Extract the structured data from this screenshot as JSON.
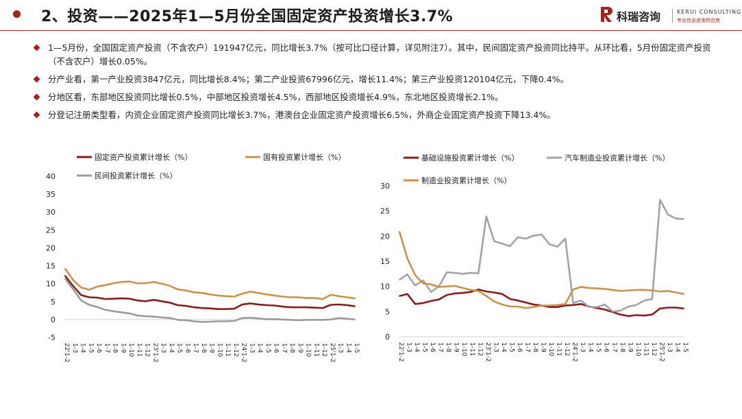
{
  "header": {
    "title": "2、投资——2025年1—5月份全国固定资产投资增长3.7%",
    "logo_cn": "科瑞咨询",
    "logo_en": "KERUI CONSULTING",
    "logo_tag": "专业信息咨询供应商",
    "accent_color": "#a8201a"
  },
  "bullets": [
    "1—5月份，全国固定资产投资（不含农户）191947亿元，同比增长3.7%（按可比口径计算，详见附注7）。其中，民间固定资产投资同比持平。从环比看，5月份固定资产投资（不含农户）增长0.05%。",
    "分产业看，第一产业投资3847亿元，同比增长8.4%；第二产业投资67996亿元，增长11.4%；第三产业投资120104亿元，下降0.4%。",
    "分地区看，东部地区投资同比增长0.5%，中部地区投资增长4.5%，西部地区投资增长4.9%，东北地区投资增长2.1%。",
    "分登记注册类型看，内资企业固定资产投资同比增长3.7%，港澳台企业固定资产投资增长6.5%，外商企业固定资产投资下降13.4%。"
  ],
  "chart_data": [
    {
      "type": "line",
      "x": [
        "22'1-2",
        "1-3",
        "1-4",
        "1-5",
        "1-6",
        "1-7",
        "1-8",
        "1-9",
        "1-10",
        "1-11",
        "1-12",
        "23'1-2",
        "1-3",
        "1-4",
        "1-5",
        "1-6",
        "1-7",
        "1-8",
        "1-9",
        "1-10",
        "1-11",
        "1-12",
        "24'1-2",
        "1-3",
        "1-4",
        "1-5",
        "1-6",
        "1-7",
        "1-8",
        "1-9",
        "1-10",
        "1-11",
        "1-12",
        "25'1-2",
        "1-3",
        "1-4",
        "1-5"
      ],
      "ylim": [
        -5,
        40
      ],
      "yticks": [
        -5,
        0,
        5,
        10,
        15,
        20,
        25,
        30,
        35,
        40
      ],
      "series": [
        {
          "name": "固定资产投资累计增长（%）",
          "color": "#8b1a1a",
          "values": [
            12.2,
            9.3,
            6.8,
            6.2,
            6.1,
            5.7,
            5.8,
            5.9,
            5.8,
            5.3,
            5.1,
            5.5,
            5.1,
            4.7,
            4.0,
            3.8,
            3.4,
            3.2,
            3.1,
            2.9,
            2.9,
            3.0,
            4.2,
            4.5,
            4.2,
            4.0,
            3.9,
            3.6,
            3.4,
            3.4,
            3.4,
            3.3,
            3.2,
            4.1,
            4.2,
            4.0,
            3.7
          ]
        },
        {
          "name": "国有投资累计增长（%）",
          "color": "#c8924a",
          "values": [
            14.2,
            11.0,
            8.9,
            8.3,
            9.2,
            9.6,
            10.1,
            10.5,
            10.6,
            10.1,
            10.1,
            10.5,
            10.0,
            9.4,
            8.4,
            8.1,
            7.6,
            7.4,
            7.0,
            6.7,
            6.5,
            6.4,
            7.2,
            7.8,
            7.4,
            7.0,
            6.7,
            6.4,
            6.2,
            6.2,
            6.0,
            6.0,
            5.7,
            6.9,
            6.5,
            6.2,
            5.9
          ]
        },
        {
          "name": "民间投资累计增长（%）",
          "color": "#9a9a9a",
          "values": [
            11.4,
            8.4,
            5.3,
            4.1,
            3.5,
            2.7,
            2.3,
            2.0,
            1.7,
            1.1,
            0.9,
            0.8,
            0.6,
            0.4,
            -0.1,
            -0.2,
            -0.5,
            -0.7,
            -0.6,
            -0.5,
            -0.5,
            -0.4,
            0.4,
            0.5,
            0.3,
            0.1,
            0.1,
            0.0,
            -0.1,
            -0.2,
            -0.1,
            -0.1,
            -0.1,
            0.0,
            0.4,
            0.2,
            0.0
          ]
        }
      ]
    },
    {
      "type": "line",
      "x": [
        "22'1-2",
        "1-3",
        "1-4",
        "1-5",
        "1-6",
        "1-7",
        "1-8",
        "1-9",
        "1-10",
        "1-11",
        "1-12",
        "23'1-2",
        "1-3",
        "1-4",
        "1-5",
        "1-6",
        "1-7",
        "1-8",
        "1-9",
        "1-10",
        "1-11",
        "1-12",
        "24'1-2",
        "1-3",
        "1-4",
        "1-5",
        "1-6",
        "1-7",
        "1-8",
        "1-9",
        "1-10",
        "1-11",
        "1-12",
        "25'1-2",
        "1-3",
        "1-4",
        "1-5"
      ],
      "ylim": [
        0,
        30
      ],
      "yticks": [
        0,
        5,
        10,
        15,
        20,
        25,
        30
      ],
      "series": [
        {
          "name": "基础设施投资累计增长（%）",
          "color": "#8b1a1a",
          "values": [
            8.1,
            8.5,
            6.5,
            6.7,
            7.1,
            7.4,
            8.3,
            8.6,
            8.7,
            8.9,
            9.4,
            9.0,
            8.8,
            8.5,
            7.5,
            7.2,
            6.8,
            6.4,
            6.2,
            5.9,
            5.9,
            6.2,
            6.3,
            6.5,
            6.0,
            5.7,
            5.4,
            4.9,
            4.4,
            4.1,
            4.3,
            4.2,
            4.4,
            5.6,
            5.8,
            5.8,
            5.6
          ]
        },
        {
          "name": "汽车制造业投资累计增长（%）",
          "color": "#a3a3a3",
          "values": [
            11.3,
            12.4,
            10.2,
            11.2,
            8.9,
            10.0,
            12.8,
            12.7,
            12.5,
            12.7,
            12.6,
            23.9,
            19.0,
            18.5,
            18.0,
            19.8,
            19.5,
            20.1,
            20.3,
            18.4,
            17.9,
            19.5,
            6.7,
            7.2,
            5.9,
            5.9,
            6.4,
            5.0,
            5.2,
            6.0,
            6.3,
            7.2,
            7.5,
            27.2,
            24.3,
            23.5,
            23.4
          ]
        },
        {
          "name": "制造业投资累计增长（%）",
          "color": "#c8924a",
          "values": [
            20.9,
            15.6,
            12.2,
            10.6,
            10.4,
            9.9,
            10.0,
            10.1,
            9.7,
            9.3,
            9.1,
            8.1,
            7.0,
            6.4,
            6.0,
            6.0,
            5.7,
            5.9,
            6.2,
            6.2,
            6.3,
            6.5,
            9.4,
            9.9,
            9.7,
            9.6,
            9.5,
            9.3,
            9.1,
            9.2,
            9.3,
            9.3,
            9.2,
            9.0,
            9.1,
            8.8,
            8.5
          ]
        }
      ]
    }
  ]
}
